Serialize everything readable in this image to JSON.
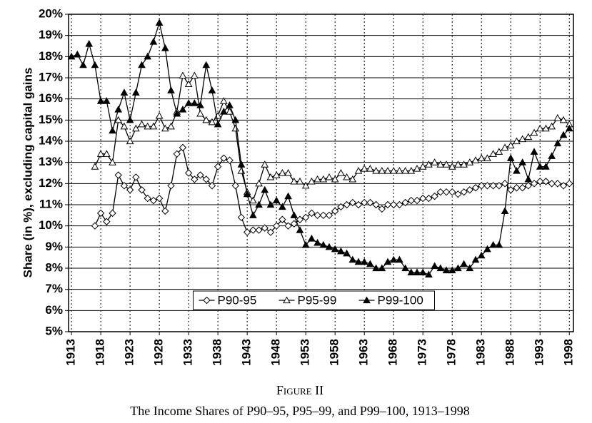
{
  "chart_data": {
    "type": "line",
    "caption_label": "Figure II",
    "caption": "The Income Shares of P90–95, P95–99, and P99–100, 1913–1998",
    "y_label": "Share (in %), excluding capital gains",
    "x": [
      1913,
      1914,
      1915,
      1916,
      1917,
      1918,
      1919,
      1920,
      1921,
      1922,
      1923,
      1924,
      1925,
      1926,
      1927,
      1928,
      1929,
      1930,
      1931,
      1932,
      1933,
      1934,
      1935,
      1936,
      1937,
      1938,
      1939,
      1940,
      1941,
      1942,
      1943,
      1944,
      1945,
      1946,
      1947,
      1948,
      1949,
      1950,
      1951,
      1952,
      1953,
      1954,
      1955,
      1956,
      1957,
      1958,
      1959,
      1960,
      1961,
      1962,
      1963,
      1964,
      1965,
      1966,
      1967,
      1968,
      1969,
      1970,
      1971,
      1972,
      1973,
      1974,
      1975,
      1976,
      1977,
      1978,
      1979,
      1980,
      1981,
      1982,
      1983,
      1984,
      1985,
      1986,
      1987,
      1988,
      1989,
      1990,
      1991,
      1992,
      1993,
      1994,
      1995,
      1996,
      1997,
      1998
    ],
    "series": [
      {
        "name": "P90-95",
        "color": "#000000",
        "marker": "diamond-open",
        "values": [
          null,
          null,
          null,
          null,
          10.0,
          10.6,
          10.2,
          10.6,
          12.4,
          11.9,
          11.7,
          12.3,
          11.7,
          11.3,
          11.2,
          11.3,
          10.7,
          11.9,
          13.4,
          13.7,
          12.5,
          12.2,
          12.4,
          12.2,
          11.9,
          12.8,
          13.2,
          13.1,
          11.9,
          10.4,
          9.7,
          9.8,
          9.8,
          9.9,
          9.7,
          10.0,
          10.3,
          10.0,
          10.1,
          10.3,
          10.4,
          10.6,
          10.5,
          10.5,
          10.5,
          10.7,
          10.9,
          11.0,
          11.1,
          11.0,
          11.1,
          11.1,
          11.0,
          10.8,
          11.0,
          11.0,
          11.0,
          11.1,
          11.2,
          11.2,
          11.3,
          11.3,
          11.4,
          11.6,
          11.6,
          11.6,
          11.5,
          11.6,
          11.7,
          11.8,
          11.9,
          11.9,
          11.9,
          11.9,
          12.0,
          11.7,
          11.8,
          11.8,
          11.9,
          12.0,
          12.1,
          12.1,
          12.0,
          12.0,
          11.9,
          12.0
        ]
      },
      {
        "name": "P95-99",
        "color": "#000000",
        "marker": "triangle-open",
        "values": [
          null,
          null,
          null,
          null,
          12.8,
          13.4,
          13.4,
          13.0,
          15.0,
          14.7,
          14.0,
          14.6,
          14.8,
          14.7,
          14.7,
          15.2,
          14.6,
          14.7,
          15.4,
          17.1,
          16.7,
          17.1,
          15.3,
          15.0,
          14.9,
          15.2,
          15.9,
          15.4,
          14.6,
          12.6,
          11.6,
          11.2,
          12.0,
          12.9,
          12.3,
          12.4,
          12.5,
          12.5,
          12.1,
          12.1,
          11.9,
          12.1,
          12.2,
          12.2,
          12.3,
          12.2,
          12.5,
          12.3,
          12.2,
          12.6,
          12.7,
          12.7,
          12.6,
          12.6,
          12.6,
          12.6,
          12.6,
          12.6,
          12.6,
          12.7,
          12.8,
          12.9,
          13.0,
          12.9,
          12.9,
          12.8,
          12.9,
          12.9,
          13.0,
          13.1,
          13.2,
          13.2,
          13.4,
          13.5,
          13.7,
          13.8,
          14.0,
          14.1,
          14.2,
          14.4,
          14.6,
          14.6,
          14.7,
          15.1,
          15.0,
          14.8
        ]
      },
      {
        "name": "P99-100",
        "color": "#000000",
        "marker": "triangle-filled",
        "values": [
          18.0,
          18.1,
          17.6,
          18.6,
          17.6,
          15.9,
          15.9,
          14.5,
          15.5,
          16.3,
          15.0,
          16.3,
          17.6,
          18.0,
          18.7,
          19.6,
          18.4,
          16.4,
          15.3,
          15.5,
          15.8,
          15.8,
          15.7,
          17.6,
          16.4,
          14.8,
          15.4,
          15.7,
          15.0,
          12.9,
          11.5,
          10.5,
          11.0,
          11.7,
          11.0,
          11.2,
          10.9,
          11.4,
          10.5,
          9.8,
          9.1,
          9.4,
          9.2,
          9.1,
          9.0,
          8.9,
          8.8,
          8.7,
          8.4,
          8.3,
          8.3,
          8.2,
          8.0,
          8.0,
          8.3,
          8.4,
          8.4,
          8.0,
          7.8,
          7.8,
          7.8,
          7.7,
          8.1,
          8.0,
          7.9,
          7.9,
          8.0,
          8.2,
          8.0,
          8.4,
          8.6,
          8.9,
          9.1,
          9.1,
          10.7,
          13.2,
          12.6,
          13.0,
          12.2,
          13.5,
          12.8,
          12.8,
          13.3,
          13.9,
          14.3,
          14.6
        ]
      }
    ],
    "xlim": [
      1912.5,
      1998.7
    ],
    "xticks": [
      1913,
      1918,
      1923,
      1928,
      1933,
      1938,
      1943,
      1948,
      1953,
      1958,
      1963,
      1968,
      1973,
      1978,
      1983,
      1988,
      1993,
      1998
    ],
    "ylim": [
      5,
      20
    ],
    "yticks": [
      {
        "value": 5,
        "label": "5%"
      },
      {
        "value": 6,
        "label": "6%"
      },
      {
        "value": 7,
        "label": "7%"
      },
      {
        "value": 8,
        "label": "8%"
      },
      {
        "value": 9,
        "label": "9%"
      },
      {
        "value": 10,
        "label": "10%"
      },
      {
        "value": 11,
        "label": "11%"
      },
      {
        "value": 12,
        "label": "12%"
      },
      {
        "value": 13,
        "label": "13%"
      },
      {
        "value": 14,
        "label": "14%"
      },
      {
        "value": 15,
        "label": "15%"
      },
      {
        "value": 16,
        "label": "16%"
      },
      {
        "value": 17,
        "label": "17%"
      },
      {
        "value": 18,
        "label": "18%"
      },
      {
        "value": 19,
        "label": "19%"
      },
      {
        "value": 20,
        "label": "20%"
      }
    ],
    "grid": true,
    "legend": "lower center"
  }
}
